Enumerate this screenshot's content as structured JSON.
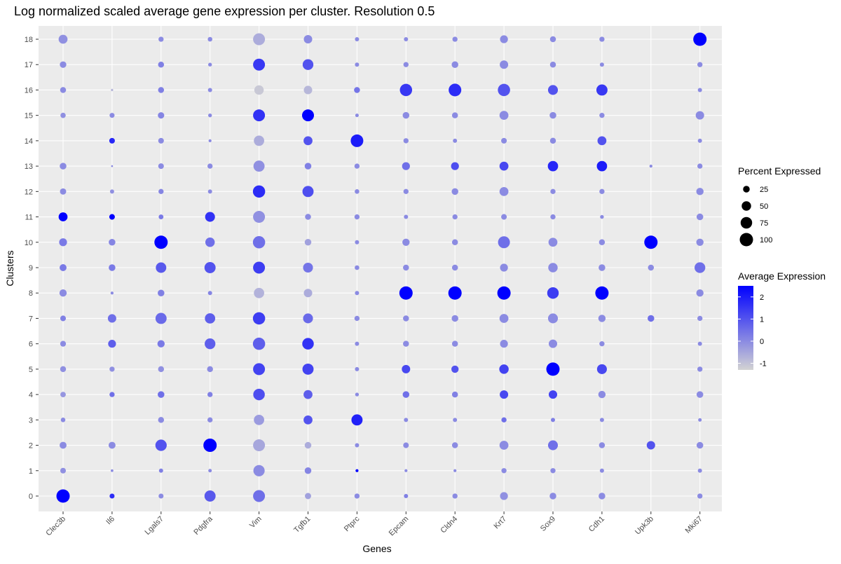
{
  "chart_data": {
    "type": "scatter",
    "subtype": "dot-plot",
    "title": "Log normalized scaled average gene expression per cluster. Resolution 0.5",
    "xlabel": "Genes",
    "ylabel": "Clusters",
    "genes": [
      "Clec3b",
      "Il6",
      "Lgals7",
      "Pdgfra",
      "Vim",
      "Tgfb1",
      "Ptprc",
      "Epcam",
      "Cldn4",
      "Krt7",
      "Sox9",
      "Cdh1",
      "Upk3b",
      "Mki67"
    ],
    "clusters": [
      "0",
      "1",
      "2",
      "3",
      "4",
      "5",
      "6",
      "7",
      "8",
      "9",
      "10",
      "11",
      "12",
      "13",
      "14",
      "15",
      "16",
      "17",
      "18"
    ],
    "color_scale": {
      "low": "#d3d3d3",
      "high": "#0000ff",
      "min": -1.3,
      "max": 2.5,
      "ticks": [
        -1,
        0,
        1,
        2
      ]
    },
    "size_scale": {
      "ticks": [
        25,
        50,
        75,
        100
      ]
    },
    "legend_placement": "right",
    "grid": true,
    "legend": {
      "size_title": "Percent Expressed",
      "color_title": "Average Expression",
      "size_labels": [
        "25",
        "50",
        "75",
        "100"
      ],
      "color_labels": [
        "2",
        "1",
        "0",
        "-1"
      ]
    },
    "pct_expressed": [
      [
        100,
        18,
        27,
        12,
        17,
        20,
        19,
        18,
        30,
        27,
        35,
        45,
        22,
        25,
        0,
        16,
        20,
        24,
        45
      ],
      [
        14,
        4,
        27,
        0,
        15,
        15,
        35,
        40,
        5,
        25,
        25,
        18,
        10,
        2,
        18,
        14,
        3,
        0,
        0
      ],
      [
        14,
        10,
        73,
        20,
        25,
        20,
        30,
        70,
        25,
        62,
        100,
        13,
        15,
        18,
        18,
        23,
        20,
        20,
        15
      ],
      [
        70,
        7,
        100,
        15,
        15,
        20,
        65,
        60,
        10,
        70,
        50,
        55,
        10,
        15,
        5,
        8,
        10,
        8,
        12
      ],
      [
        80,
        72,
        80,
        60,
        75,
        80,
        85,
        85,
        60,
        80,
        85,
        80,
        85,
        70,
        60,
        80,
        50,
        80,
        80
      ],
      [
        22,
        25,
        25,
        45,
        45,
        70,
        75,
        55,
        40,
        55,
        25,
        20,
        70,
        25,
        45,
        80,
        40,
        65,
        40
      ],
      [
        15,
        5,
        10,
        70,
        8,
        10,
        10,
        15,
        10,
        12,
        10,
        15,
        12,
        15,
        90,
        7,
        20,
        10,
        10
      ],
      [
        10,
        5,
        18,
        10,
        25,
        40,
        20,
        20,
        100,
        20,
        30,
        10,
        15,
        35,
        15,
        25,
        85,
        15,
        10
      ],
      [
        15,
        5,
        20,
        10,
        20,
        30,
        20,
        25,
        100,
        20,
        20,
        15,
        25,
        35,
        10,
        20,
        90,
        25,
        15
      ],
      [
        35,
        15,
        45,
        15,
        40,
        50,
        35,
        45,
        100,
        35,
        80,
        18,
        45,
        45,
        18,
        45,
        85,
        40,
        35
      ],
      [
        25,
        15,
        55,
        10,
        40,
        100,
        40,
        55,
        75,
        50,
        45,
        15,
        15,
        60,
        20,
        25,
        55,
        20,
        20
      ],
      [
        25,
        10,
        20,
        10,
        30,
        55,
        15,
        30,
        100,
        25,
        20,
        8,
        15,
        60,
        45,
        15,
        70,
        10,
        15
      ],
      [
        0,
        0,
        40,
        0,
        0,
        0,
        0,
        25,
        0,
        20,
        100,
        0,
        0,
        5,
        0,
        0,
        0,
        0,
        0
      ],
      [
        15,
        10,
        25,
        7,
        25,
        15,
        10,
        15,
        30,
        65,
        30,
        25,
        30,
        15,
        10,
        40,
        10,
        15,
        100
      ]
    ],
    "avg_expression": [
      [
        2.5,
        -0.1,
        0.0,
        0.0,
        -0.2,
        -0.1,
        0.0,
        0.2,
        0.0,
        0.3,
        0.3,
        2.5,
        0.0,
        0.0,
        -0.1,
        -0.1,
        0.0,
        0.0,
        -0.1
      ],
      [
        1.7,
        0.0,
        0.0,
        0.0,
        0.5,
        -0.1,
        0.8,
        0.5,
        0.0,
        0.3,
        0.1,
        2.5,
        -0.1,
        0.0,
        1.8,
        0.0,
        -0.8,
        0.0,
        0.0
      ],
      [
        0.0,
        0.2,
        1.0,
        0.0,
        0.5,
        -0.1,
        0.3,
        0.6,
        0.2,
        0.9,
        2.5,
        0.3,
        0.1,
        0.0,
        0.0,
        0.1,
        0.2,
        0.2,
        0.0
      ],
      [
        0.9,
        0.0,
        2.5,
        0.0,
        0.2,
        0.0,
        0.8,
        0.8,
        0.1,
        1.0,
        0.5,
        1.6,
        0.0,
        0.0,
        0.0,
        0.0,
        0.0,
        0.0,
        0.0
      ],
      [
        0.5,
        0.0,
        -0.5,
        -0.3,
        1.1,
        1.3,
        0.8,
        1.4,
        -0.7,
        1.4,
        0.5,
        -0.1,
        1.7,
        -0.1,
        -0.6,
        1.6,
        -1.1,
        1.5,
        -0.6
      ],
      [
        -0.4,
        0.1,
        -0.6,
        1.0,
        0.8,
        1.3,
        1.6,
        0.6,
        -0.6,
        0.4,
        -0.4,
        0.0,
        1.1,
        0.2,
        1.0,
        2.5,
        -0.8,
        1.0,
        0.0
      ],
      [
        0.0,
        2.5,
        0.0,
        1.9,
        0.0,
        0.0,
        0.0,
        0.0,
        0.0,
        0.0,
        0.0,
        0.0,
        0.0,
        0.0,
        2.0,
        0.0,
        0.4,
        0.0,
        0.0
      ],
      [
        0.2,
        0.0,
        0.0,
        0.0,
        0.5,
        1.2,
        0.0,
        0.0,
        2.5,
        0.0,
        0.0,
        0.0,
        0.0,
        0.5,
        0.0,
        0.0,
        1.5,
        0.0,
        0.0
      ],
      [
        0.0,
        0.0,
        0.0,
        0.0,
        0.2,
        1.0,
        0.0,
        0.0,
        2.5,
        0.0,
        0.0,
        0.0,
        0.0,
        1.1,
        0.0,
        0.0,
        1.7,
        0.0,
        0.0
      ],
      [
        -0.1,
        0.0,
        0.0,
        0.5,
        1.2,
        1.3,
        0.0,
        0.0,
        2.5,
        0.0,
        0.5,
        0.0,
        0.0,
        1.2,
        0.0,
        0.0,
        1.0,
        0.0,
        0.0
      ],
      [
        0.0,
        0.0,
        0.5,
        0.2,
        1.3,
        2.5,
        0.0,
        0.0,
        1.4,
        0.0,
        0.0,
        0.0,
        0.0,
        1.8,
        0.0,
        0.0,
        1.0,
        0.0,
        0.0
      ],
      [
        0.0,
        0.0,
        0.0,
        0.0,
        0.0,
        1.2,
        0.0,
        0.0,
        2.5,
        0.0,
        0.0,
        0.0,
        0.0,
        2.0,
        1.0,
        0.0,
        1.5,
        0.0,
        0.0
      ],
      [
        0.0,
        0.0,
        1.0,
        0.0,
        0.0,
        0.0,
        0.5,
        0.5,
        0.0,
        0.0,
        2.5,
        0.0,
        0.0,
        0.0,
        0.0,
        0.0,
        0.0,
        0.0,
        0.0
      ],
      [
        0.0,
        0.0,
        0.0,
        0.0,
        0.0,
        0.0,
        0.0,
        0.0,
        0.0,
        0.5,
        0.0,
        0.0,
        0.0,
        0.0,
        0.0,
        0.0,
        0.0,
        0.0,
        2.5
      ]
    ]
  }
}
